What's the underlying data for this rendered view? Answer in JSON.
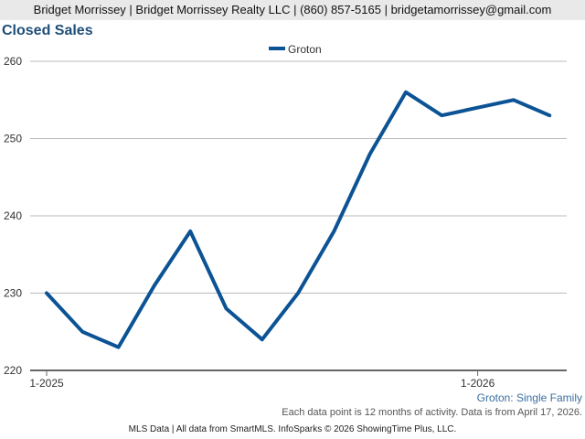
{
  "header": {
    "contact": "Bridget Morrissey | Bridget Morrissey Realty LLC | (860) 857-5165 | bridgetamorrissey@gmail.com"
  },
  "footer": {
    "subtitle": "Groton: Single Family",
    "note": "Each data point is 12 months of activity. Data is from April 17, 2026.",
    "source": "MLS Data | All data from SmartMLS. InfoSparks © 2026 ShowingTime Plus, LLC."
  },
  "colors": {
    "series": "#0b5394",
    "title": "#1e4e79",
    "grid": "#bbbbbb",
    "axis": "#666666"
  },
  "chart_data": {
    "type": "line",
    "title": "Closed Sales",
    "x": [
      "2025-01",
      "2025-02",
      "2025-03",
      "2025-04",
      "2025-05",
      "2025-06",
      "2025-07",
      "2025-08",
      "2025-09",
      "2025-10",
      "2025-11",
      "2025-12",
      "2026-01",
      "2026-02",
      "2026-03"
    ],
    "x_tick_labels": [
      {
        "x": "2025-01",
        "label": "1-2025"
      },
      {
        "x": "2026-01",
        "label": "1-2026"
      }
    ],
    "series": [
      {
        "name": "Groton",
        "values": [
          230,
          225,
          223,
          231,
          238,
          228,
          224,
          230,
          238,
          248,
          256,
          253,
          254,
          255,
          253
        ]
      }
    ],
    "ylim": [
      220,
      260
    ],
    "yticks": [
      220,
      230,
      240,
      250,
      260
    ],
    "grid": true,
    "legend": "top-center"
  }
}
